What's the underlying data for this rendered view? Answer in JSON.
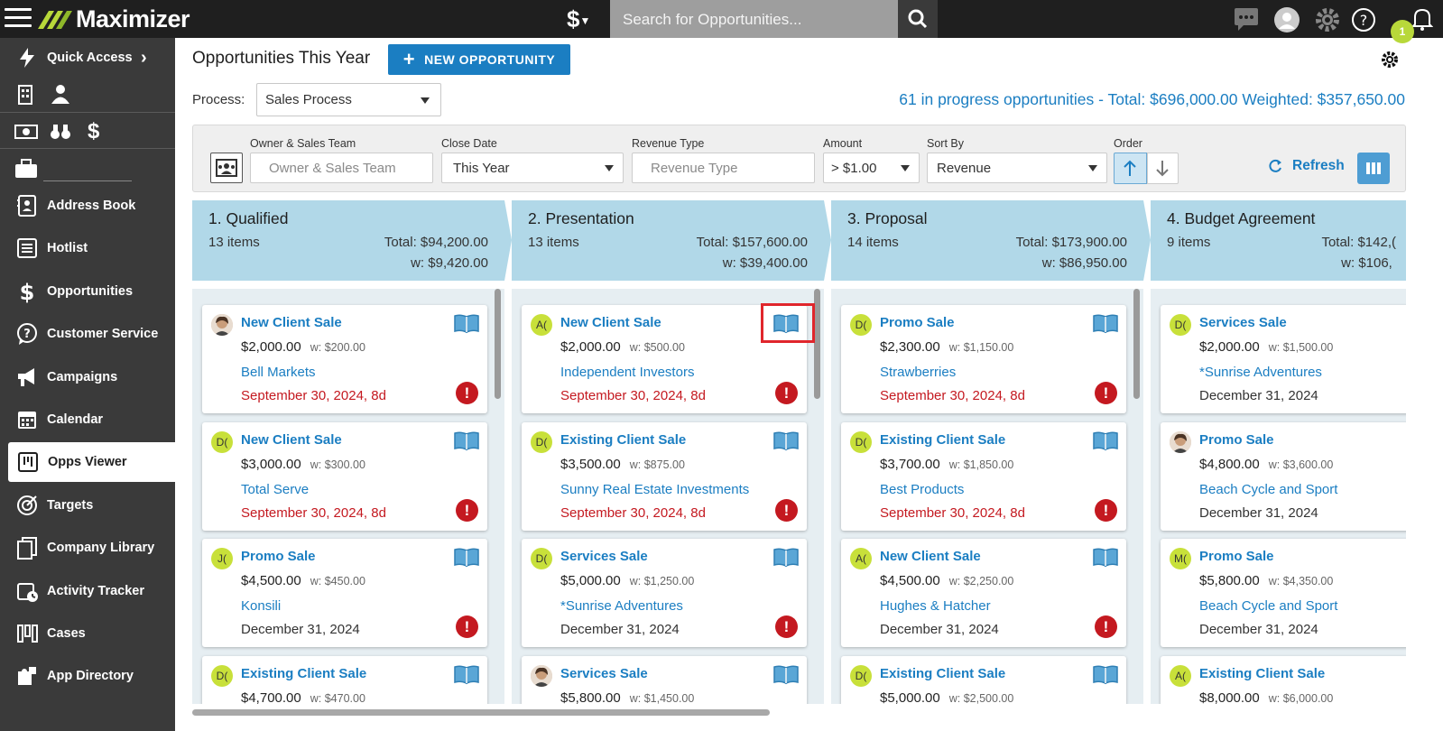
{
  "app": {
    "name": "Maximizer",
    "currency_symbol": "$",
    "notification_count": "1"
  },
  "search": {
    "placeholder": "Search for Opportunities..."
  },
  "sidebar": {
    "quick_access": "Quick Access",
    "items": [
      {
        "label": "Address Book",
        "icon": "address-book-icon"
      },
      {
        "label": "Hotlist",
        "icon": "list-icon"
      },
      {
        "label": "Opportunities",
        "icon": "dollar-icon"
      },
      {
        "label": "Customer Service",
        "icon": "help-chat-icon"
      },
      {
        "label": "Campaigns",
        "icon": "megaphone-icon"
      },
      {
        "label": "Calendar",
        "icon": "calendar-icon"
      },
      {
        "label": "Opps Viewer",
        "icon": "board-icon",
        "active": true
      },
      {
        "label": "Targets",
        "icon": "target-icon"
      },
      {
        "label": "Company Library",
        "icon": "library-icon"
      },
      {
        "label": "Activity Tracker",
        "icon": "activity-icon"
      },
      {
        "label": "Cases",
        "icon": "cases-icon"
      },
      {
        "label": "App Directory",
        "icon": "puzzle-icon"
      }
    ]
  },
  "header": {
    "title": "Opportunities This Year",
    "new_button": "NEW OPPORTUNITY",
    "process_label": "Process:",
    "process_value": "Sales Process",
    "summary": "61 in progress opportunities - Total: $696,000.00 Weighted: $357,650.00"
  },
  "filters": {
    "owner": {
      "label": "Owner & Sales Team",
      "placeholder": "Owner & Sales Team"
    },
    "close_date": {
      "label": "Close Date",
      "value": "This Year"
    },
    "revenue_type": {
      "label": "Revenue Type",
      "placeholder": "Revenue Type"
    },
    "amount": {
      "label": "Amount",
      "value": "> $1.00"
    },
    "sort_by": {
      "label": "Sort By",
      "value": "Revenue"
    },
    "order": {
      "label": "Order"
    },
    "refresh": "Refresh"
  },
  "colors": {
    "accent": "#1b7ec2",
    "overdue": "#c41920",
    "stage_header": "#b1d8e8",
    "avatar": "#c8e03a",
    "sidebar": "#3a3a3a"
  },
  "columns": [
    {
      "name": "1. Qualified",
      "items": "13 items",
      "total": "Total: $94,200.00",
      "weighted": "w: $9,420.00",
      "cards": [
        {
          "avatar": "",
          "photo": true,
          "title": "New Client Sale",
          "amount": "$2,000.00",
          "weighted": "w: $200.00",
          "company": "Bell Markets",
          "date": "September 30, 2024, 8d",
          "overdue": true
        },
        {
          "avatar": "D(",
          "title": "New Client Sale",
          "amount": "$3,000.00",
          "weighted": "w: $300.00",
          "company": "Total Serve",
          "date": "September 30, 2024, 8d",
          "overdue": true
        },
        {
          "avatar": "J(",
          "title": "Promo Sale",
          "amount": "$4,500.00",
          "weighted": "w: $450.00",
          "company": "Konsili",
          "date": "December 31, 2024",
          "overdue": false,
          "alert": true
        },
        {
          "avatar": "D(",
          "title": "Existing Client Sale",
          "amount": "$4,700.00",
          "weighted": "w: $470.00",
          "company": "",
          "date": "",
          "overdue": false
        }
      ]
    },
    {
      "name": "2. Presentation",
      "items": "13 items",
      "total": "Total: $157,600.00",
      "weighted": "w: $39,400.00",
      "cards": [
        {
          "avatar": "A(",
          "title": "New Client Sale",
          "amount": "$2,000.00",
          "weighted": "w: $500.00",
          "company": "Independent Investors",
          "date": "September 30, 2024, 8d",
          "overdue": true,
          "highlight": true
        },
        {
          "avatar": "D(",
          "title": "Existing Client Sale",
          "amount": "$3,500.00",
          "weighted": "w: $875.00",
          "company": "Sunny Real Estate Investments",
          "date": "September 30, 2024, 8d",
          "overdue": true
        },
        {
          "avatar": "D(",
          "title": "Services Sale",
          "amount": "$5,000.00",
          "weighted": "w: $1,250.00",
          "company": "*Sunrise Adventures",
          "date": "December 31, 2024",
          "overdue": false,
          "alert": true
        },
        {
          "avatar": "",
          "photo": true,
          "title": "Services Sale",
          "amount": "$5,800.00",
          "weighted": "w: $1,450.00",
          "company": "",
          "date": "",
          "overdue": false
        }
      ]
    },
    {
      "name": "3. Proposal",
      "items": "14 items",
      "total": "Total: $173,900.00",
      "weighted": "w: $86,950.00",
      "cards": [
        {
          "avatar": "D(",
          "title": "Promo Sale",
          "amount": "$2,300.00",
          "weighted": "w: $1,150.00",
          "company": "Strawberries",
          "date": "September 30, 2024, 8d",
          "overdue": true
        },
        {
          "avatar": "D(",
          "title": "Existing Client Sale",
          "amount": "$3,700.00",
          "weighted": "w: $1,850.00",
          "company": "Best Products",
          "date": "September 30, 2024, 8d",
          "overdue": true
        },
        {
          "avatar": "A(",
          "title": "New Client Sale",
          "amount": "$4,500.00",
          "weighted": "w: $2,250.00",
          "company": "Hughes & Hatcher",
          "date": "December 31, 2024",
          "overdue": false,
          "alert": true
        },
        {
          "avatar": "D(",
          "title": "Existing Client Sale",
          "amount": "$5,000.00",
          "weighted": "w: $2,500.00",
          "company": "",
          "date": "",
          "overdue": false
        }
      ]
    },
    {
      "name": "4. Budget Agreement",
      "items": "9 items",
      "total": "Total: $142,(",
      "weighted": "w: $106, ",
      "cards": [
        {
          "avatar": "D(",
          "title": "Services Sale",
          "amount": "$2,000.00",
          "weighted": "w: $1,500.00",
          "company": "*Sunrise Adventures",
          "date": "December 31, 2024",
          "overdue": false
        },
        {
          "avatar": "",
          "photo": true,
          "title": "Promo Sale",
          "amount": "$4,800.00",
          "weighted": "w: $3,600.00",
          "company": "Beach Cycle and Sport",
          "date": "December 31, 2024",
          "overdue": false
        },
        {
          "avatar": "M(",
          "title": "Promo Sale",
          "amount": "$5,800.00",
          "weighted": "w: $4,350.00",
          "company": "Beach Cycle and Sport",
          "date": "December 31, 2024",
          "overdue": false
        },
        {
          "avatar": "A(",
          "title": "Existing Client Sale",
          "amount": "$8,000.00",
          "weighted": "w: $6,000.00",
          "company": "",
          "date": "",
          "overdue": false
        }
      ]
    }
  ]
}
